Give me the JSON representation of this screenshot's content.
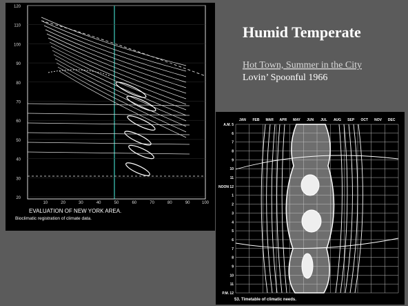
{
  "slide": {
    "title": "Humid Temperate",
    "link": "Hot Town, Summer in the City",
    "subtitle": "Lovin’ Spoonful 1966"
  },
  "left_figure": {
    "y_labels": [
      120,
      110,
      100,
      90,
      80,
      70,
      60,
      50,
      40,
      30,
      20
    ],
    "x_labels": [
      10,
      20,
      30,
      40,
      50,
      60,
      70,
      80,
      90,
      100
    ],
    "caption": "EVALUATION OF NEW YORK AREA.",
    "note": "Bioclimatic registration of climate data."
  },
  "right_figure": {
    "months": [
      "JAN",
      "FEB",
      "MAR",
      "APR",
      "MAY",
      "JUN",
      "JUL",
      "AUG",
      "SEP",
      "OCT",
      "NOV",
      "DEC"
    ],
    "hours": [
      "A.M. 5",
      "6",
      "7",
      "8",
      "9",
      "10",
      "11",
      "NOON 12",
      "1",
      "2",
      "3",
      "4",
      "5",
      "6",
      "7",
      "8",
      "9",
      "10",
      "11",
      "P.M. 12"
    ],
    "caption": "53. Timetable of climatic needs."
  }
}
